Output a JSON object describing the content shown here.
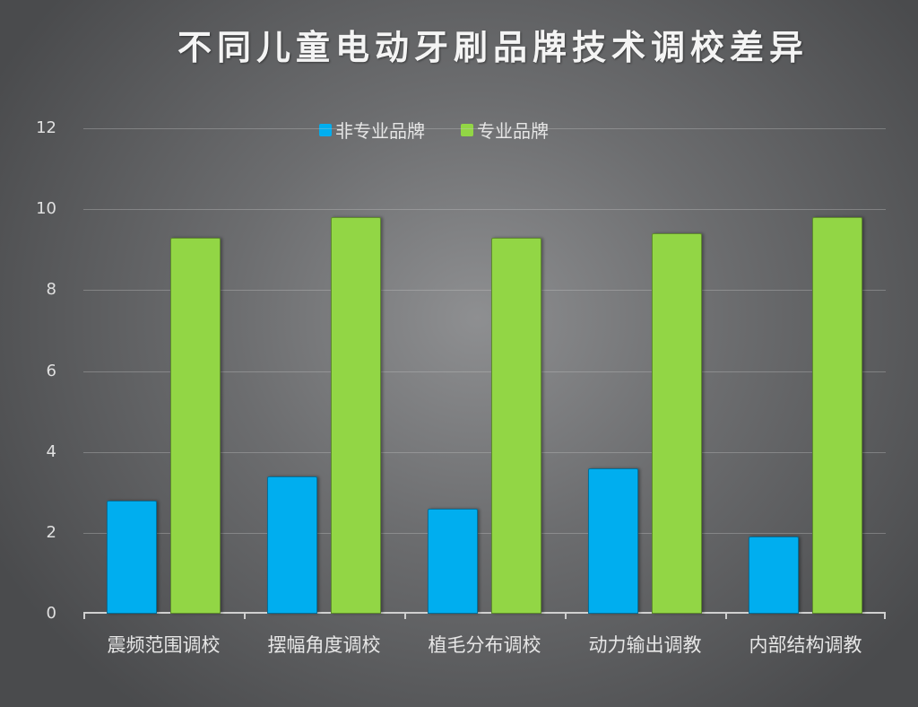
{
  "chart_data": {
    "type": "bar",
    "title": "不同儿童电动牙刷品牌技术调校差异",
    "xlabel": "",
    "ylabel": "",
    "ylim": [
      0,
      12
    ],
    "yticks": [
      0,
      2,
      4,
      6,
      8,
      10,
      12
    ],
    "grid": true,
    "legend_position": "top",
    "categories": [
      "震频范围调校",
      "摆幅角度调校",
      "植毛分布调校",
      "动力输出调教",
      "内部结构调教"
    ],
    "series": [
      {
        "name": "非专业品牌",
        "color": "#00aeef",
        "values": [
          2.8,
          3.4,
          2.6,
          3.6,
          1.9
        ]
      },
      {
        "name": "专业品牌",
        "color": "#92d645",
        "values": [
          9.3,
          9.8,
          9.3,
          9.4,
          9.8
        ]
      }
    ]
  }
}
